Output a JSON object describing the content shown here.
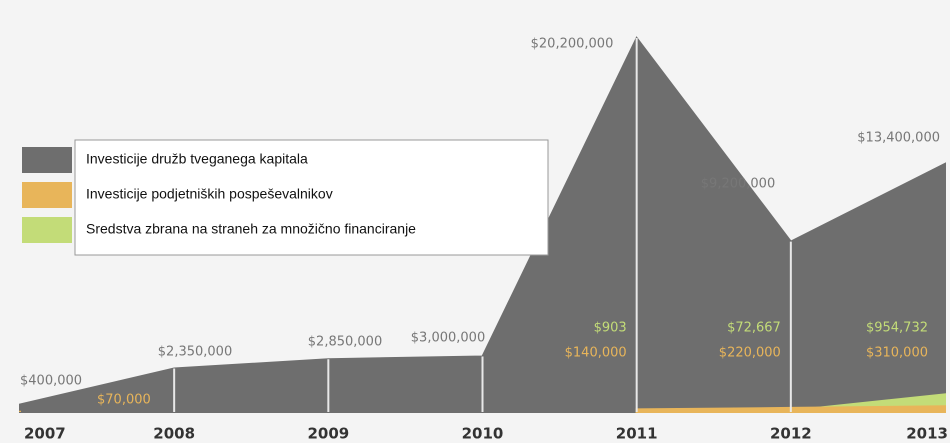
{
  "chart_data": {
    "type": "area",
    "categories": [
      "2007",
      "2008",
      "2009",
      "2010",
      "2011",
      "2012",
      "2013"
    ],
    "ylim": [
      0,
      20200000
    ],
    "series": [
      {
        "name": "Investicije družb tveganega kapitala",
        "color": "#6e6e6e",
        "values": [
          400000,
          2350000,
          2850000,
          3000000,
          20200000,
          9200000,
          13400000
        ],
        "value_labels": [
          "$400,000",
          "$2,350,000",
          "$2,850,000",
          "$3,000,000",
          "$20,200,000",
          "$9,200,000",
          "$13,400,000"
        ]
      },
      {
        "name": "Investicije podjetniških pospeševalnikov",
        "color": "#e8b55a",
        "values": [
          70000,
          null,
          null,
          null,
          140000,
          220000,
          310000
        ],
        "value_labels": [
          "$70,000",
          null,
          null,
          null,
          "$140,000",
          "$220,000",
          "$310,000"
        ]
      },
      {
        "name": "Sredstva zbrana na straneh za množično financiranje",
        "color": "#c3dc78",
        "values": [
          null,
          null,
          null,
          null,
          903,
          72667,
          954732
        ],
        "value_labels": [
          null,
          null,
          null,
          null,
          "$903",
          "$72,667",
          "$954,732"
        ]
      }
    ],
    "legend": "upper left"
  }
}
